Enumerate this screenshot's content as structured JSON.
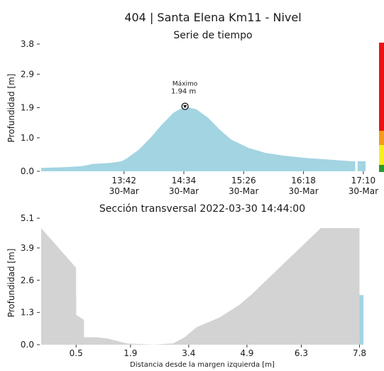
{
  "figure": {
    "title": "404 | Santa Elena Km11 - Nivel"
  },
  "status_bar": {
    "colors": [
      "#ee1111",
      "#f79a1a",
      "#f6f01c",
      "#2a9a2a"
    ]
  },
  "chart_data": [
    {
      "type": "area",
      "title": "Serie de tiempo",
      "ylabel": "Profundidad [m]",
      "xlabel": "",
      "fill_color": "#a3d4e2",
      "ylim": [
        0,
        3.8
      ],
      "yticks": [
        {
          "value": 0.0,
          "label": "0.0"
        },
        {
          "value": 1.0,
          "label": "1.0"
        },
        {
          "value": 1.9,
          "label": "1.9"
        },
        {
          "value": 2.9,
          "label": "2.9"
        },
        {
          "value": 3.8,
          "label": "3.8"
        }
      ],
      "xlim": [
        "12:30",
        "17:15"
      ],
      "xticks": [
        {
          "value": "13:42",
          "label": "13:42",
          "sublabel": "30-Mar"
        },
        {
          "value": "14:34",
          "label": "14:34",
          "sublabel": "30-Mar"
        },
        {
          "value": "15:26",
          "label": "15:26",
          "sublabel": "30-Mar"
        },
        {
          "value": "16:18",
          "label": "16:18",
          "sublabel": "30-Mar"
        },
        {
          "value": "17:10",
          "label": "17:10",
          "sublabel": "30-Mar"
        }
      ],
      "x": [
        "12:30",
        "12:50",
        "13:05",
        "13:15",
        "13:30",
        "13:40",
        "13:45",
        "13:55",
        "14:05",
        "14:15",
        "14:25",
        "14:35",
        "14:45",
        "14:55",
        "15:05",
        "15:15",
        "15:30",
        "15:45",
        "16:00",
        "16:20",
        "16:40",
        "17:00",
        "17:03"
      ],
      "y": [
        0.1,
        0.12,
        0.15,
        0.22,
        0.25,
        0.3,
        0.4,
        0.65,
        1.0,
        1.4,
        1.75,
        1.94,
        1.85,
        1.6,
        1.25,
        0.95,
        0.7,
        0.55,
        0.47,
        0.4,
        0.35,
        0.3,
        0.3
      ],
      "segments": [
        {
          "x": [
            "17:05",
            "17:12"
          ],
          "y": [
            0.3,
            0.3
          ]
        }
      ],
      "annotation": {
        "label": "Máximo",
        "value_label": "1.94 m",
        "x": "14:35",
        "y": 1.94
      }
    },
    {
      "type": "area",
      "title": "Sección transversal 2022-03-30 14:44:00",
      "xlabel": "Distancia desde la margen izquierda [m]",
      "ylabel": "Profundidad [m]",
      "ground_color": "#d3d3d3",
      "water_color": "#a3d4e2",
      "xlim": [
        -0.4,
        7.9
      ],
      "ylim": [
        0,
        5.1
      ],
      "xticks": [
        {
          "value": 0.5,
          "label": "0.5"
        },
        {
          "value": 1.9,
          "label": "1.9"
        },
        {
          "value": 3.4,
          "label": "3.4"
        },
        {
          "value": 4.9,
          "label": "4.9"
        },
        {
          "value": 6.3,
          "label": "6.3"
        },
        {
          "value": 7.8,
          "label": "7.8"
        }
      ],
      "yticks": [
        {
          "value": 0.0,
          "label": "0.0"
        },
        {
          "value": 1.3,
          "label": "1.3"
        },
        {
          "value": 2.6,
          "label": "2.6"
        },
        {
          "value": 3.9,
          "label": "3.9"
        },
        {
          "value": 5.1,
          "label": "5.1"
        }
      ],
      "water_level": 2.0,
      "profile_x": [
        -0.4,
        0.5,
        0.5,
        0.7,
        0.7,
        1.0,
        1.3,
        1.8,
        2.5,
        3.0,
        3.3,
        3.6,
        3.9,
        4.2,
        4.7,
        5.0,
        6.8,
        7.8
      ],
      "profile_y": [
        4.7,
        3.1,
        1.2,
        1.0,
        0.3,
        0.3,
        0.25,
        0.05,
        0.0,
        0.05,
        0.3,
        0.7,
        0.9,
        1.1,
        1.6,
        2.0,
        4.7,
        4.7
      ]
    }
  ]
}
